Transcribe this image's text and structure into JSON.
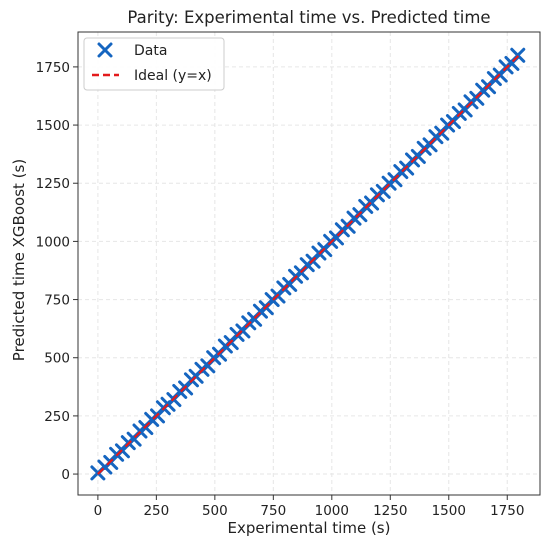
{
  "chart_data": {
    "type": "scatter",
    "title": "Parity: Experimental time vs. Predicted time",
    "xlabel": "Experimental time (s)",
    "ylabel": "Predicted time XGBoost (s)",
    "xlim": [
      -85,
      1890
    ],
    "ylim": [
      -90,
      1900
    ],
    "xticks": [
      0,
      250,
      500,
      750,
      1000,
      1250,
      1500,
      1750
    ],
    "yticks": [
      0,
      250,
      500,
      750,
      1000,
      1250,
      1500,
      1750
    ],
    "grid": true,
    "legend_position": "top-left",
    "series": [
      {
        "name": "Data",
        "kind": "scatter",
        "marker": "x",
        "color": "#1565c0",
        "points": [
          [
            0,
            5
          ],
          [
            30,
            30
          ],
          [
            55,
            50
          ],
          [
            80,
            85
          ],
          [
            105,
            100
          ],
          [
            130,
            135
          ],
          [
            155,
            150
          ],
          [
            180,
            185
          ],
          [
            205,
            200
          ],
          [
            230,
            235
          ],
          [
            255,
            250
          ],
          [
            280,
            285
          ],
          [
            300,
            300
          ],
          [
            325,
            320
          ],
          [
            350,
            355
          ],
          [
            375,
            370
          ],
          [
            400,
            405
          ],
          [
            420,
            420
          ],
          [
            445,
            450
          ],
          [
            470,
            465
          ],
          [
            495,
            500
          ],
          [
            520,
            515
          ],
          [
            545,
            550
          ],
          [
            570,
            565
          ],
          [
            595,
            600
          ],
          [
            620,
            615
          ],
          [
            645,
            650
          ],
          [
            670,
            665
          ],
          [
            695,
            700
          ],
          [
            720,
            715
          ],
          [
            745,
            750
          ],
          [
            770,
            765
          ],
          [
            795,
            800
          ],
          [
            820,
            815
          ],
          [
            845,
            850
          ],
          [
            870,
            865
          ],
          [
            895,
            900
          ],
          [
            920,
            915
          ],
          [
            945,
            950
          ],
          [
            970,
            965
          ],
          [
            995,
            1000
          ],
          [
            1020,
            1015
          ],
          [
            1045,
            1050
          ],
          [
            1070,
            1065
          ],
          [
            1095,
            1100
          ],
          [
            1120,
            1115
          ],
          [
            1145,
            1150
          ],
          [
            1170,
            1165
          ],
          [
            1195,
            1200
          ],
          [
            1220,
            1215
          ],
          [
            1245,
            1250
          ],
          [
            1270,
            1265
          ],
          [
            1295,
            1300
          ],
          [
            1320,
            1315
          ],
          [
            1345,
            1350
          ],
          [
            1370,
            1365
          ],
          [
            1395,
            1400
          ],
          [
            1420,
            1415
          ],
          [
            1445,
            1450
          ],
          [
            1470,
            1465
          ],
          [
            1495,
            1500
          ],
          [
            1520,
            1515
          ],
          [
            1545,
            1550
          ],
          [
            1570,
            1565
          ],
          [
            1595,
            1600
          ],
          [
            1620,
            1615
          ],
          [
            1645,
            1650
          ],
          [
            1670,
            1665
          ],
          [
            1695,
            1700
          ],
          [
            1720,
            1715
          ],
          [
            1745,
            1750
          ],
          [
            1770,
            1765
          ],
          [
            1795,
            1800
          ]
        ]
      },
      {
        "name": "Ideal (y=x)",
        "kind": "line",
        "style": "dashed",
        "color": "#e31a1c",
        "points": [
          [
            0,
            0
          ],
          [
            1800,
            1800
          ]
        ]
      }
    ]
  }
}
